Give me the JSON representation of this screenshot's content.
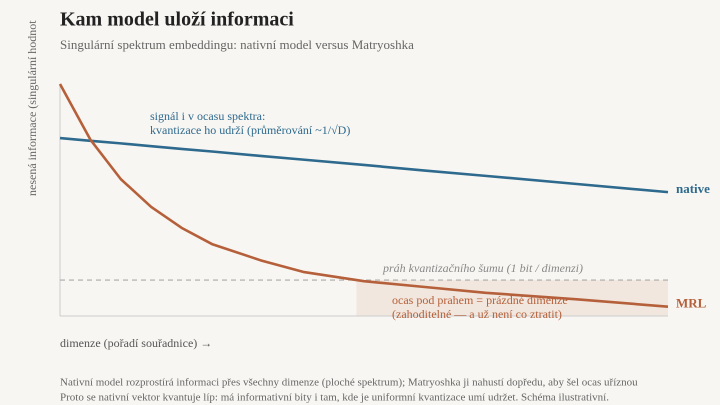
{
  "chart_data": {
    "type": "line",
    "title": "Kam model uloží informaci",
    "subtitle": "Singulární spektrum embeddingu: nativní model versus Matryoshka",
    "y_label": "nesená informace (singulární hodnot",
    "x_label": "dimenze (pořadí souřadnice) →",
    "x": [
      0,
      0.05,
      0.1,
      0.15,
      0.2,
      0.25,
      0.33,
      0.4,
      0.5,
      0.6,
      0.7,
      0.85,
      1
    ],
    "series": [
      {
        "name": "native",
        "color": "#2e6a8e",
        "values": [
          0.767,
          0.755,
          0.744,
          0.732,
          0.72,
          0.709,
          0.69,
          0.674,
          0.651,
          0.627,
          0.604,
          0.569,
          0.534
        ]
      },
      {
        "name": "MRL",
        "color": "#b5603a",
        "values": [
          1.0,
          0.76,
          0.59,
          0.47,
          0.38,
          0.31,
          0.24,
          0.19,
          0.15,
          0.125,
          0.1,
          0.072,
          0.04
        ]
      }
    ],
    "threshold": {
      "value": 0.155,
      "label": "práh kvantizačního šumu (1 bit / dimenzi)"
    },
    "annotations": [
      [
        "signál i v ocasu spektra:",
        "kvantizace ho udrží (průměrování ~1/√D)"
      ],
      [
        "ocas pod prahem = prázdné dimenze",
        "(zahoditelné — a už není co ztratit)"
      ]
    ],
    "xlim": [
      0,
      1
    ],
    "ylim": [
      0,
      1
    ],
    "caption": [
      "Nativní model rozprostírá informaci přes všechny dimenze (ploché spektrum); Matryoshka ji nahustí dopředu, aby šel ocas uříznou",
      "Proto se nativní vektor kvantuje líp: má informativní bity i tam, kde je uniformní kvantizace umí udržet. Schéma ilustrativní."
    ]
  }
}
